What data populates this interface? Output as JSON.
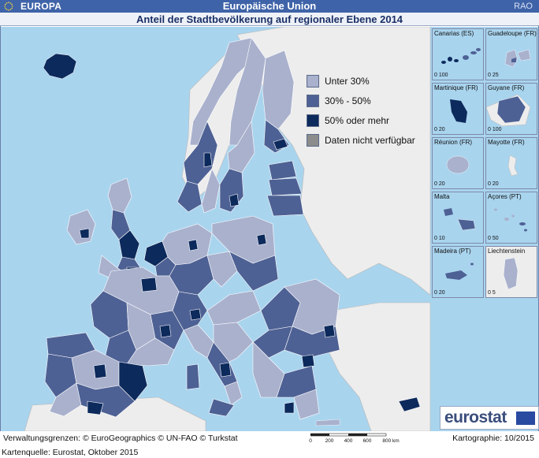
{
  "header": {
    "left_label": "EUROPA",
    "center_label": "Europäische Union",
    "right_label": "RAO",
    "title": "Anteil der Stadtbevölkerung auf regionaler Ebene 2014"
  },
  "legend": {
    "items": [
      {
        "label": "Unter 30%",
        "color": "#a9b1cd"
      },
      {
        "label": "30% - 50%",
        "color": "#4e6194"
      },
      {
        "label": "50% oder mehr",
        "color": "#0d2a5c"
      },
      {
        "label": "Daten nicht verfügbar",
        "color": "#8c8c8c"
      }
    ]
  },
  "insets": [
    {
      "name": "Canarias (ES)",
      "scale": "0  100"
    },
    {
      "name": "Guadeloupe (FR)",
      "scale": "0   25"
    },
    {
      "name": "Martinique (FR)",
      "scale": "0   20"
    },
    {
      "name": "Guyane (FR)",
      "scale": "0  100"
    },
    {
      "name": "Réunion (FR)",
      "scale": "0   20"
    },
    {
      "name": "Mayotte (FR)",
      "scale": "0   20"
    },
    {
      "name": "Malta",
      "scale": "0   10"
    },
    {
      "name": "Açores (PT)",
      "scale": "0   50"
    },
    {
      "name": "Madeira (PT)",
      "scale": "0   20"
    },
    {
      "name": "Liechtenstein",
      "scale": "0   5"
    }
  ],
  "footer": {
    "admin_boundaries": "Verwaltungsgrenzen: © EuroGeographics © UN-FAO © Turkstat",
    "cartography": "Kartographie: 10/2015",
    "map_source": "Kartenquelle: Eurostat, Oktober 2015",
    "scale_labels": [
      "0",
      "200",
      "400",
      "600",
      "800 km"
    ]
  },
  "logo": {
    "text": "eurostat"
  },
  "colors": {
    "sea": "#a9d4ee",
    "non_eu_land": "#ededed",
    "low": "#a9b1cd",
    "mid": "#4e6194",
    "high": "#0d2a5c",
    "na": "#8c8c8c"
  }
}
